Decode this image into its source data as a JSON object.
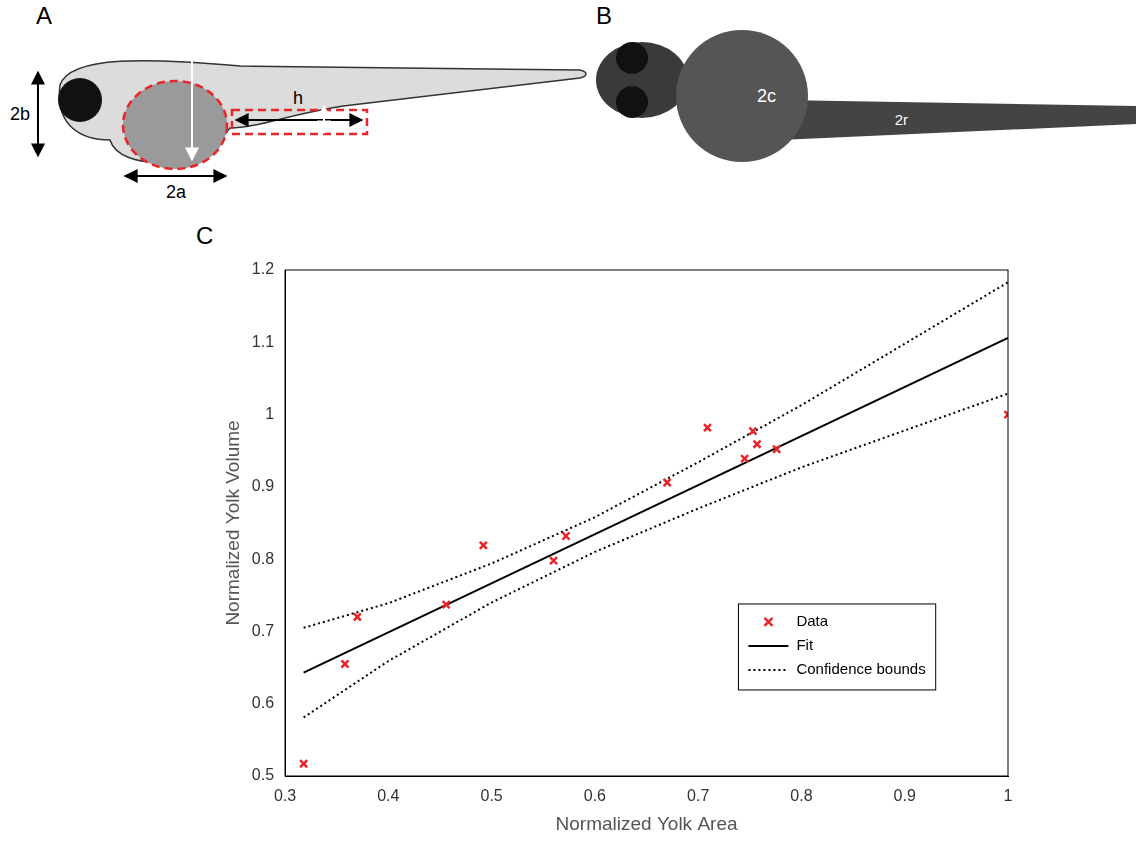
{
  "figure": {
    "panel_A": {
      "letter": "A",
      "labels": [
        "2b",
        "2a",
        "h"
      ]
    },
    "panel_B": {
      "letter": "B",
      "labels": [
        "2c",
        "2r"
      ]
    },
    "panel_C": {
      "letter": "C"
    }
  },
  "chart_data": {
    "type": "scatter",
    "x_label": "Normalized Yolk Area",
    "y_label": "Normalized Yolk Volume",
    "xlim": [
      0.3,
      1
    ],
    "xticks": [
      0.3,
      0.4,
      0.5,
      0.6,
      0.7,
      0.8,
      0.9,
      1
    ],
    "ylim": [
      0.5,
      1.2
    ],
    "yticks": [
      0.5,
      0.6,
      0.7,
      0.8,
      0.9,
      1,
      1.1,
      1.2
    ],
    "grid": false,
    "legend": "center right",
    "series": [
      {
        "name": "Data",
        "type": "scatter",
        "color": "#e8262a",
        "marker": "x",
        "x": [
          0.318,
          0.358,
          0.37,
          0.456,
          0.492,
          0.56,
          0.572,
          0.67,
          0.709,
          0.745,
          0.753,
          0.757,
          0.776,
          1.0
        ],
        "values": [
          0.517,
          0.655,
          0.72,
          0.737,
          0.819,
          0.798,
          0.832,
          0.906,
          0.982,
          0.939,
          0.977,
          0.959,
          0.952,
          1.0
        ]
      },
      {
        "name": "Fit",
        "type": "line",
        "color": "#000000",
        "line_style": "solid",
        "x": [
          0.318,
          1.0
        ],
        "values": [
          0.643,
          1.106
        ]
      },
      {
        "name": "Confidence bounds",
        "type": "line",
        "color": "#000000",
        "line_style": "dotted",
        "x": [
          0.318,
          0.4,
          0.5,
          0.6,
          0.7,
          0.8,
          0.9,
          1.0
        ],
        "upper": [
          0.705,
          0.739,
          0.794,
          0.858,
          0.934,
          1.013,
          1.098,
          1.183
        ],
        "lower": [
          0.581,
          0.659,
          0.74,
          0.81,
          0.87,
          0.927,
          0.978,
          1.029
        ]
      }
    ]
  }
}
